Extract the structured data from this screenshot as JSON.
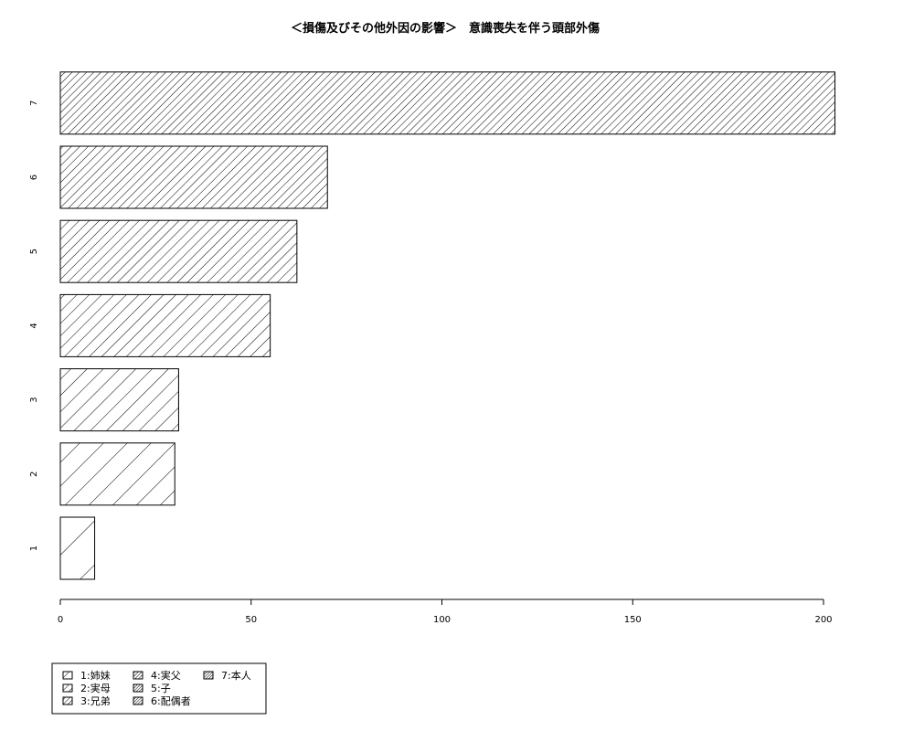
{
  "chart_data": {
    "type": "bar",
    "orientation": "horizontal",
    "title": "＜損傷及びその他外因の影響＞　意識喪失を伴う頭部外傷",
    "xlabel": "",
    "ylabel": "",
    "categories": [
      "1",
      "2",
      "3",
      "4",
      "5",
      "6",
      "7"
    ],
    "values": [
      9,
      30,
      31,
      55,
      62,
      70,
      203
    ],
    "xlim": [
      0,
      200
    ],
    "xticks": [
      "0",
      "50",
      "100",
      "150",
      "200"
    ],
    "grid": false,
    "fill": "diagonal hatching, density increasing with category",
    "bar_color": "#000000",
    "background": "#ffffff",
    "legend": {
      "position": "bottom-left",
      "entries": [
        "1:姉妹",
        "2:実母",
        "3:兄弟",
        "4:実父",
        "5:子",
        "6:配偶者",
        "7:本人"
      ]
    }
  }
}
